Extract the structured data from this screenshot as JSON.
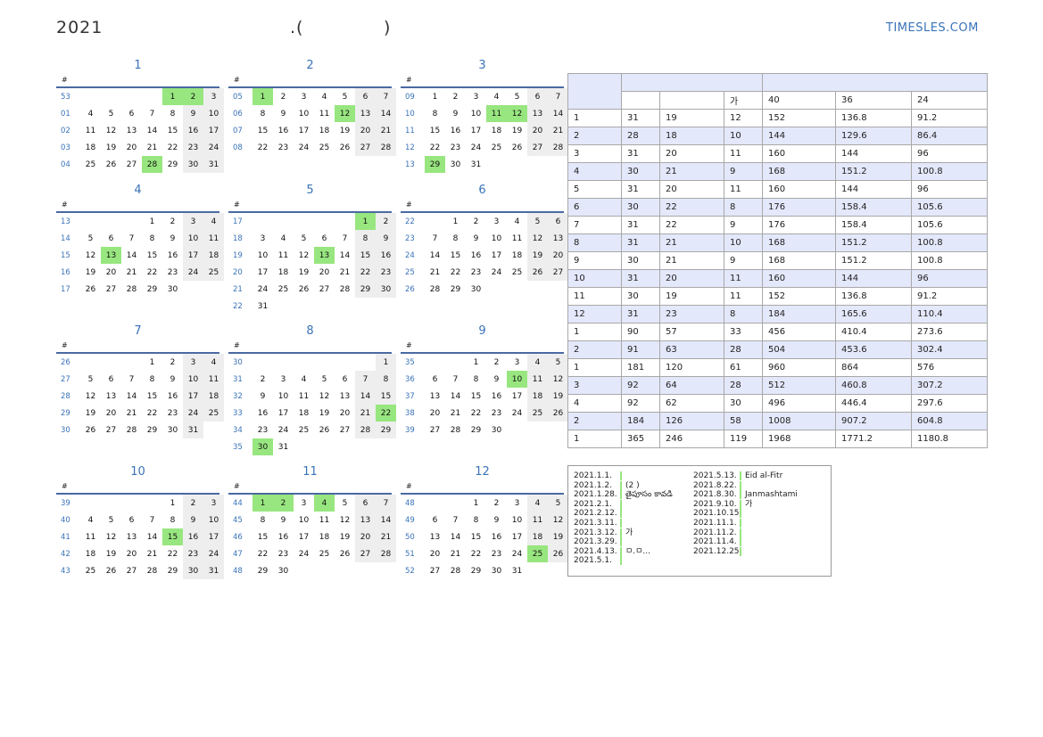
{
  "header": {
    "year": "2021",
    "sep": ".(",
    "close": ")",
    "brand": "TIMESLES.COM"
  },
  "week_mark": "#",
  "months": [
    {
      "label": "1",
      "rows": [
        {
          "w": "53",
          "d": [
            "",
            "",
            "",
            "",
            "1",
            "2",
            "3"
          ],
          "h": [
            4,
            5
          ]
        },
        {
          "w": "01",
          "d": [
            "4",
            "5",
            "6",
            "7",
            "8",
            "9",
            "10"
          ],
          "h": []
        },
        {
          "w": "02",
          "d": [
            "11",
            "12",
            "13",
            "14",
            "15",
            "16",
            "17"
          ],
          "h": []
        },
        {
          "w": "03",
          "d": [
            "18",
            "19",
            "20",
            "21",
            "22",
            "23",
            "24"
          ],
          "h": []
        },
        {
          "w": "04",
          "d": [
            "25",
            "26",
            "27",
            "28",
            "29",
            "30",
            "31"
          ],
          "h": [
            3
          ]
        }
      ]
    },
    {
      "label": "2",
      "rows": [
        {
          "w": "05",
          "d": [
            "1",
            "2",
            "3",
            "4",
            "5",
            "6",
            "7"
          ],
          "h": [
            0
          ]
        },
        {
          "w": "06",
          "d": [
            "8",
            "9",
            "10",
            "11",
            "12",
            "13",
            "14"
          ],
          "h": [
            4
          ]
        },
        {
          "w": "07",
          "d": [
            "15",
            "16",
            "17",
            "18",
            "19",
            "20",
            "21"
          ],
          "h": []
        },
        {
          "w": "08",
          "d": [
            "22",
            "23",
            "24",
            "25",
            "26",
            "27",
            "28"
          ],
          "h": []
        }
      ]
    },
    {
      "label": "3",
      "rows": [
        {
          "w": "09",
          "d": [
            "1",
            "2",
            "3",
            "4",
            "5",
            "6",
            "7"
          ],
          "h": []
        },
        {
          "w": "10",
          "d": [
            "8",
            "9",
            "10",
            "11",
            "12",
            "13",
            "14"
          ],
          "h": [
            3,
            4
          ]
        },
        {
          "w": "11",
          "d": [
            "15",
            "16",
            "17",
            "18",
            "19",
            "20",
            "21"
          ],
          "h": []
        },
        {
          "w": "12",
          "d": [
            "22",
            "23",
            "24",
            "25",
            "26",
            "27",
            "28"
          ],
          "h": []
        },
        {
          "w": "13",
          "d": [
            "29",
            "30",
            "31",
            "",
            "",
            "",
            ""
          ],
          "h": [
            0
          ]
        }
      ]
    },
    {
      "label": "4",
      "rows": [
        {
          "w": "13",
          "d": [
            "",
            "",
            "",
            "1",
            "2",
            "3",
            "4"
          ],
          "h": []
        },
        {
          "w": "14",
          "d": [
            "5",
            "6",
            "7",
            "8",
            "9",
            "10",
            "11"
          ],
          "h": []
        },
        {
          "w": "15",
          "d": [
            "12",
            "13",
            "14",
            "15",
            "16",
            "17",
            "18"
          ],
          "h": [
            1
          ]
        },
        {
          "w": "16",
          "d": [
            "19",
            "20",
            "21",
            "22",
            "23",
            "24",
            "25"
          ],
          "h": []
        },
        {
          "w": "17",
          "d": [
            "26",
            "27",
            "28",
            "29",
            "30",
            "",
            ""
          ],
          "h": []
        }
      ]
    },
    {
      "label": "5",
      "rows": [
        {
          "w": "17",
          "d": [
            "",
            "",
            "",
            "",
            "",
            "1",
            "2"
          ],
          "h": [
            5
          ]
        },
        {
          "w": "18",
          "d": [
            "3",
            "4",
            "5",
            "6",
            "7",
            "8",
            "9"
          ],
          "h": []
        },
        {
          "w": "19",
          "d": [
            "10",
            "11",
            "12",
            "13",
            "14",
            "15",
            "16"
          ],
          "h": [
            3
          ]
        },
        {
          "w": "20",
          "d": [
            "17",
            "18",
            "19",
            "20",
            "21",
            "22",
            "23"
          ],
          "h": []
        },
        {
          "w": "21",
          "d": [
            "24",
            "25",
            "26",
            "27",
            "28",
            "29",
            "30"
          ],
          "h": []
        },
        {
          "w": "22",
          "d": [
            "31",
            "",
            "",
            "",
            "",
            "",
            ""
          ],
          "h": []
        }
      ]
    },
    {
      "label": "6",
      "rows": [
        {
          "w": "22",
          "d": [
            "",
            "1",
            "2",
            "3",
            "4",
            "5",
            "6"
          ],
          "h": []
        },
        {
          "w": "23",
          "d": [
            "7",
            "8",
            "9",
            "10",
            "11",
            "12",
            "13"
          ],
          "h": []
        },
        {
          "w": "24",
          "d": [
            "14",
            "15",
            "16",
            "17",
            "18",
            "19",
            "20"
          ],
          "h": []
        },
        {
          "w": "25",
          "d": [
            "21",
            "22",
            "23",
            "24",
            "25",
            "26",
            "27"
          ],
          "h": []
        },
        {
          "w": "26",
          "d": [
            "28",
            "29",
            "30",
            "",
            "",
            "",
            ""
          ],
          "h": []
        }
      ]
    },
    {
      "label": "7",
      "rows": [
        {
          "w": "26",
          "d": [
            "",
            "",
            "",
            "1",
            "2",
            "3",
            "4"
          ],
          "h": []
        },
        {
          "w": "27",
          "d": [
            "5",
            "6",
            "7",
            "8",
            "9",
            "10",
            "11"
          ],
          "h": []
        },
        {
          "w": "28",
          "d": [
            "12",
            "13",
            "14",
            "15",
            "16",
            "17",
            "18"
          ],
          "h": []
        },
        {
          "w": "29",
          "d": [
            "19",
            "20",
            "21",
            "22",
            "23",
            "24",
            "25"
          ],
          "h": []
        },
        {
          "w": "30",
          "d": [
            "26",
            "27",
            "28",
            "29",
            "30",
            "31",
            ""
          ],
          "h": []
        }
      ]
    },
    {
      "label": "8",
      "rows": [
        {
          "w": "30",
          "d": [
            "",
            "",
            "",
            "",
            "",
            "",
            "1"
          ],
          "h": []
        },
        {
          "w": "31",
          "d": [
            "2",
            "3",
            "4",
            "5",
            "6",
            "7",
            "8"
          ],
          "h": []
        },
        {
          "w": "32",
          "d": [
            "9",
            "10",
            "11",
            "12",
            "13",
            "14",
            "15"
          ],
          "h": []
        },
        {
          "w": "33",
          "d": [
            "16",
            "17",
            "18",
            "19",
            "20",
            "21",
            "22"
          ],
          "h": [
            6
          ]
        },
        {
          "w": "34",
          "d": [
            "23",
            "24",
            "25",
            "26",
            "27",
            "28",
            "29"
          ],
          "h": []
        },
        {
          "w": "35",
          "d": [
            "30",
            "31",
            "",
            "",
            "",
            "",
            ""
          ],
          "h": [
            0
          ]
        }
      ]
    },
    {
      "label": "9",
      "rows": [
        {
          "w": "35",
          "d": [
            "",
            "",
            "1",
            "2",
            "3",
            "4",
            "5"
          ],
          "h": []
        },
        {
          "w": "36",
          "d": [
            "6",
            "7",
            "8",
            "9",
            "10",
            "11",
            "12"
          ],
          "h": [
            4
          ]
        },
        {
          "w": "37",
          "d": [
            "13",
            "14",
            "15",
            "16",
            "17",
            "18",
            "19"
          ],
          "h": []
        },
        {
          "w": "38",
          "d": [
            "20",
            "21",
            "22",
            "23",
            "24",
            "25",
            "26"
          ],
          "h": []
        },
        {
          "w": "39",
          "d": [
            "27",
            "28",
            "29",
            "30",
            "",
            "",
            ""
          ],
          "h": []
        }
      ]
    },
    {
      "label": "10",
      "rows": [
        {
          "w": "39",
          "d": [
            "",
            "",
            "",
            "",
            "1",
            "2",
            "3"
          ],
          "h": []
        },
        {
          "w": "40",
          "d": [
            "4",
            "5",
            "6",
            "7",
            "8",
            "9",
            "10"
          ],
          "h": []
        },
        {
          "w": "41",
          "d": [
            "11",
            "12",
            "13",
            "14",
            "15",
            "16",
            "17"
          ],
          "h": [
            4
          ]
        },
        {
          "w": "42",
          "d": [
            "18",
            "19",
            "20",
            "21",
            "22",
            "23",
            "24"
          ],
          "h": []
        },
        {
          "w": "43",
          "d": [
            "25",
            "26",
            "27",
            "28",
            "29",
            "30",
            "31"
          ],
          "h": []
        }
      ]
    },
    {
      "label": "11",
      "rows": [
        {
          "w": "44",
          "d": [
            "1",
            "2",
            "3",
            "4",
            "5",
            "6",
            "7"
          ],
          "h": [
            0,
            1,
            3
          ]
        },
        {
          "w": "45",
          "d": [
            "8",
            "9",
            "10",
            "11",
            "12",
            "13",
            "14"
          ],
          "h": []
        },
        {
          "w": "46",
          "d": [
            "15",
            "16",
            "17",
            "18",
            "19",
            "20",
            "21"
          ],
          "h": []
        },
        {
          "w": "47",
          "d": [
            "22",
            "23",
            "24",
            "25",
            "26",
            "27",
            "28"
          ],
          "h": []
        },
        {
          "w": "48",
          "d": [
            "29",
            "30",
            "",
            "",
            "",
            "",
            ""
          ],
          "h": []
        }
      ]
    },
    {
      "label": "12",
      "rows": [
        {
          "w": "48",
          "d": [
            "",
            "",
            "1",
            "2",
            "3",
            "4",
            "5"
          ],
          "h": []
        },
        {
          "w": "49",
          "d": [
            "6",
            "7",
            "8",
            "9",
            "10",
            "11",
            "12"
          ],
          "h": []
        },
        {
          "w": "50",
          "d": [
            "13",
            "14",
            "15",
            "16",
            "17",
            "18",
            "19"
          ],
          "h": []
        },
        {
          "w": "51",
          "d": [
            "20",
            "21",
            "22",
            "23",
            "24",
            "25",
            "26"
          ],
          "h": [
            5
          ]
        },
        {
          "w": "52",
          "d": [
            "27",
            "28",
            "29",
            "30",
            "31",
            "",
            ""
          ],
          "h": []
        }
      ]
    }
  ],
  "stats": {
    "header2": [
      "",
      "",
      "가",
      "40",
      "36",
      "24"
    ],
    "rows": [
      [
        "1",
        "31",
        "19",
        "12",
        "152",
        "136.8",
        "91.2"
      ],
      [
        "2",
        "28",
        "18",
        "10",
        "144",
        "129.6",
        "86.4"
      ],
      [
        "3",
        "31",
        "20",
        "11",
        "160",
        "144",
        "96"
      ],
      [
        "4",
        "30",
        "21",
        "9",
        "168",
        "151.2",
        "100.8"
      ],
      [
        "5",
        "31",
        "20",
        "11",
        "160",
        "144",
        "96"
      ],
      [
        "6",
        "30",
        "22",
        "8",
        "176",
        "158.4",
        "105.6"
      ],
      [
        "7",
        "31",
        "22",
        "9",
        "176",
        "158.4",
        "105.6"
      ],
      [
        "8",
        "31",
        "21",
        "10",
        "168",
        "151.2",
        "100.8"
      ],
      [
        "9",
        "30",
        "21",
        "9",
        "168",
        "151.2",
        "100.8"
      ],
      [
        "10",
        "31",
        "20",
        "11",
        "160",
        "144",
        "96"
      ],
      [
        "11",
        "30",
        "19",
        "11",
        "152",
        "136.8",
        "91.2"
      ],
      [
        "12",
        "31",
        "23",
        "8",
        "184",
        "165.6",
        "110.4"
      ],
      [
        "1",
        "90",
        "57",
        "33",
        "456",
        "410.4",
        "273.6"
      ],
      [
        "2",
        "91",
        "63",
        "28",
        "504",
        "453.6",
        "302.4"
      ],
      [
        "1",
        "181",
        "120",
        "61",
        "960",
        "864",
        "576"
      ],
      [
        "3",
        "92",
        "64",
        "28",
        "512",
        "460.8",
        "307.2"
      ],
      [
        "4",
        "92",
        "62",
        "30",
        "496",
        "446.4",
        "297.6"
      ],
      [
        "2",
        "184",
        "126",
        "58",
        "1008",
        "907.2",
        "604.8"
      ],
      [
        "1",
        "365",
        "246",
        "119",
        "1968",
        "1771.2",
        "1180.8"
      ]
    ]
  },
  "holidays": {
    "left": [
      {
        "date": "2021.1.1.",
        "name": ""
      },
      {
        "date": "2021.1.2.",
        "name": "(2      )"
      },
      {
        "date": "2021.1.28.",
        "name": "తైపూసం కావడి"
      },
      {
        "date": "2021.2.1.",
        "name": ""
      },
      {
        "date": "2021.2.12.",
        "name": ""
      },
      {
        "date": "2021.3.11.",
        "name": ""
      },
      {
        "date": "2021.3.12.",
        "name": "가"
      },
      {
        "date": "2021.3.29.",
        "name": ""
      },
      {
        "date": "2021.4.13.",
        "name": "ㅁ.ㅁ..."
      },
      {
        "date": "2021.5.1.",
        "name": ""
      }
    ],
    "right": [
      {
        "date": "2021.5.13.",
        "name": "Eid al-Fitr"
      },
      {
        "date": "2021.8.22.",
        "name": ""
      },
      {
        "date": "2021.8.30.",
        "name": "Janmashtami"
      },
      {
        "date": "2021.9.10.",
        "name": "가"
      },
      {
        "date": "2021.10.15.",
        "name": ""
      },
      {
        "date": "2021.11.1.",
        "name": ""
      },
      {
        "date": "2021.11.2.",
        "name": ""
      },
      {
        "date": "2021.11.4.",
        "name": ""
      },
      {
        "date": "2021.12.25.",
        "name": ""
      }
    ]
  },
  "colors": {
    "accent": "#3a73b8",
    "holiday": "#98e67f",
    "weekend": "#eeeeee",
    "table_alt": "#e4e8fb"
  }
}
